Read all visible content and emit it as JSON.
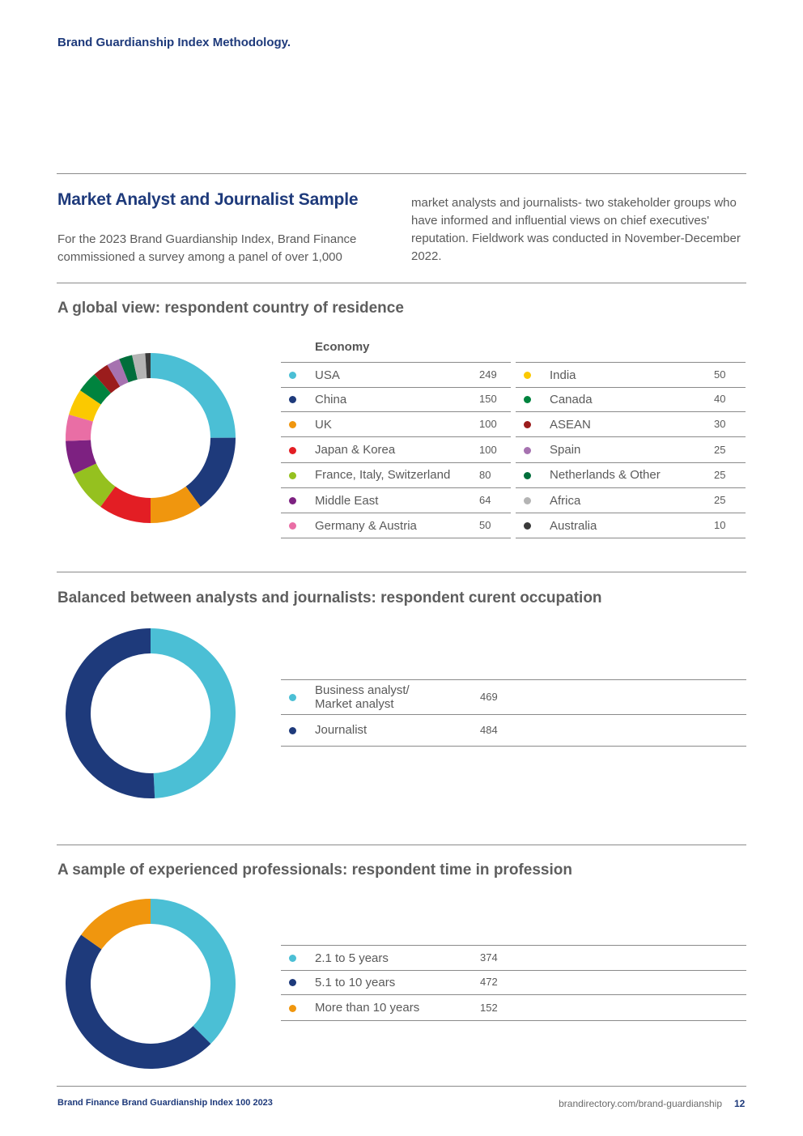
{
  "running_title": "Brand Guardianship Index Methodology.",
  "intro": {
    "title": "Market Analyst and Journalist Sample",
    "left_text": "For the 2023 Brand Guardianship Index, Brand Finance commissioned a survey among a panel of over 1,000",
    "right_text": "market analysts and journalists- two stakeholder groups who have informed and influential views on chief executives' reputation. Fieldwork was conducted in November-December 2022."
  },
  "chart_data": [
    {
      "type": "pie",
      "title": "A global view: respondent country of residence",
      "table_header": "Economy",
      "categories": [
        "USA",
        "China",
        "UK",
        "Japan & Korea",
        "France, Italy, Switzerland",
        "Middle East",
        "Germany & Austria",
        "India",
        "Canada",
        "ASEAN",
        "Spain",
        "Netherlands & Other",
        "Africa",
        "Australia"
      ],
      "values": [
        249,
        150,
        100,
        100,
        80,
        64,
        50,
        50,
        40,
        30,
        25,
        25,
        25,
        10
      ],
      "colors": [
        "#4bbfd5",
        "#1e3a7b",
        "#f0960e",
        "#e31e24",
        "#95c11f",
        "#7d2181",
        "#e96ea5",
        "#fbc900",
        "#00833e",
        "#9b1c1c",
        "#a672b0",
        "#006e3b",
        "#b4b4b4",
        "#3a3a3a"
      ]
    },
    {
      "type": "pie",
      "title": "Balanced between analysts and journalists: respondent curent occupation",
      "categories": [
        "Business analyst/\nMarket analyst",
        "Journalist"
      ],
      "values": [
        469,
        484
      ],
      "colors": [
        "#4bbfd5",
        "#1e3a7b"
      ]
    },
    {
      "type": "pie",
      "title": "A sample of experienced professionals: respondent time in profession",
      "categories": [
        "2.1 to 5 years",
        "5.1 to 10 years",
        "More than 10 years"
      ],
      "values": [
        374,
        472,
        152
      ],
      "colors": [
        "#4bbfd5",
        "#1e3a7b",
        "#f0960e"
      ]
    }
  ],
  "footer": {
    "left": "Brand Finance Brand Guardianship Index 100 2023",
    "url": "brandirectory.com/brand-guardianship",
    "page": "12"
  }
}
